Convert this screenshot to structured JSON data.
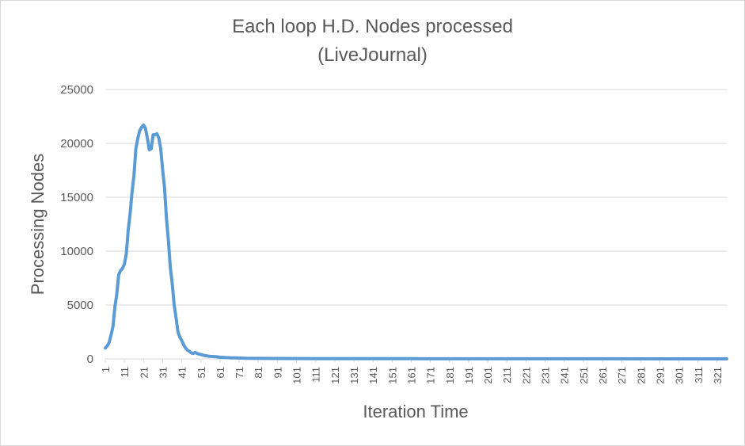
{
  "chart_data": {
    "type": "line",
    "title": "Each loop H.D. Nodes processed",
    "subtitle": "(LiveJournal)",
    "xlabel": "Iteration Time",
    "ylabel": "Processing Nodes",
    "ylim": [
      0,
      25000
    ],
    "yticks": [
      "0",
      "5000",
      "10000",
      "15000",
      "20000",
      "25000"
    ],
    "xticks": [
      "1",
      "11",
      "21",
      "31",
      "41",
      "51",
      "61",
      "71",
      "81",
      "91",
      "101",
      "111",
      "121",
      "131",
      "141",
      "151",
      "161",
      "171",
      "181",
      "191",
      "201",
      "211",
      "221",
      "231",
      "241",
      "251",
      "261",
      "271",
      "281",
      "291",
      "301",
      "311",
      "321"
    ],
    "xlim": [
      1,
      326
    ],
    "grid": true,
    "legend": "none",
    "series_color": "#5b9bd5",
    "series": [
      {
        "x": [
          1,
          2,
          3,
          4,
          5,
          6,
          7,
          8,
          9,
          10,
          11,
          12,
          13,
          14,
          15,
          16,
          17,
          18,
          19,
          20,
          21,
          22,
          23,
          24,
          25,
          26,
          27,
          28,
          29,
          30,
          31,
          32,
          33,
          34,
          35,
          36,
          37,
          38,
          39,
          40,
          41,
          42,
          43,
          44,
          45,
          46,
          47,
          48,
          49,
          50,
          51,
          52,
          53,
          54,
          55,
          56,
          57,
          58,
          59,
          60,
          61,
          62,
          63,
          64,
          65,
          66,
          67,
          68,
          69,
          70,
          71,
          72,
          73,
          74,
          75,
          80,
          90,
          100,
          110,
          120,
          130,
          140,
          150,
          160,
          170,
          200,
          250,
          300,
          326
        ],
        "values": [
          1000,
          1200,
          1500,
          2200,
          3000,
          4800,
          6000,
          7800,
          8200,
          8400,
          8800,
          9800,
          12000,
          13500,
          15500,
          17000,
          19500,
          20500,
          21200,
          21500,
          21700,
          21400,
          20500,
          19400,
          19500,
          20800,
          20800,
          20900,
          20500,
          19500,
          17500,
          15800,
          13000,
          11000,
          8500,
          7000,
          5000,
          3800,
          2500,
          2000,
          1700,
          1300,
          1000,
          800,
          700,
          550,
          500,
          600,
          500,
          450,
          400,
          350,
          300,
          280,
          250,
          230,
          220,
          210,
          200,
          180,
          150,
          140,
          130,
          120,
          110,
          100,
          95,
          90,
          85,
          80,
          75,
          70,
          65,
          60,
          55,
          45,
          35,
          30,
          25,
          22,
          20,
          18,
          15,
          12,
          10,
          6,
          4,
          3,
          2
        ]
      }
    ]
  }
}
